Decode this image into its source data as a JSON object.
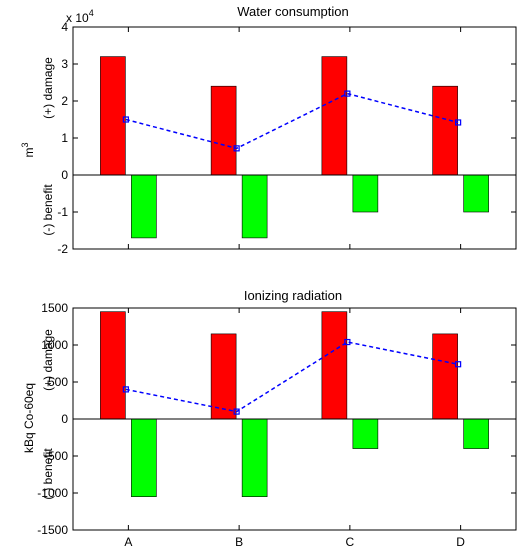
{
  "chart_data": [
    {
      "type": "bar",
      "title": "Water consumption",
      "ylabel_main": "m",
      "ylabel_main_sup": "3",
      "ylabel_pos": "(+) damage",
      "ylabel_neg": "(-) benefit",
      "scale_label": "x 10",
      "scale_exp": "4",
      "categories": [
        "A",
        "B",
        "C",
        "D"
      ],
      "ylim": [
        -2,
        4
      ],
      "yticks": [
        -2,
        -1,
        0,
        1,
        2,
        3,
        4
      ],
      "ytick_labels": [
        "-2",
        "-1",
        "0",
        "1",
        "2",
        "3",
        "4"
      ],
      "series": [
        {
          "color": "#ff0000",
          "values": [
            3.2,
            2.4,
            3.2,
            2.4
          ]
        },
        {
          "color": "#00ff00",
          "values": [
            -1.7,
            -1.7,
            -1.0,
            -1.0
          ]
        }
      ],
      "line": {
        "color": "#0000ff",
        "style": "dashed",
        "marker": "square",
        "values": [
          1.5,
          0.72,
          2.2,
          1.42
        ]
      },
      "grid": false,
      "show_xticklabels": false
    },
    {
      "type": "bar",
      "title": "Ionizing radiation",
      "ylabel_main": "kBq Co-60eq",
      "ylabel_pos": "(+) damage",
      "ylabel_neg": "(-) benefit",
      "categories": [
        "A",
        "B",
        "C",
        "D"
      ],
      "ylim": [
        -1500,
        1500
      ],
      "yticks": [
        -1500,
        -1000,
        -500,
        0,
        500,
        1000,
        1500
      ],
      "ytick_labels": [
        "-1500",
        "-1000",
        "-500",
        "0",
        "500",
        "1000",
        "1500"
      ],
      "series": [
        {
          "color": "#ff0000",
          "values": [
            1450,
            1150,
            1450,
            1150
          ]
        },
        {
          "color": "#00ff00",
          "values": [
            -1050,
            -1050,
            -400,
            -400
          ]
        }
      ],
      "line": {
        "color": "#0000ff",
        "style": "dashed",
        "marker": "square",
        "values": [
          400,
          100,
          1040,
          740
        ]
      },
      "grid": false,
      "show_xticklabels": true
    }
  ]
}
